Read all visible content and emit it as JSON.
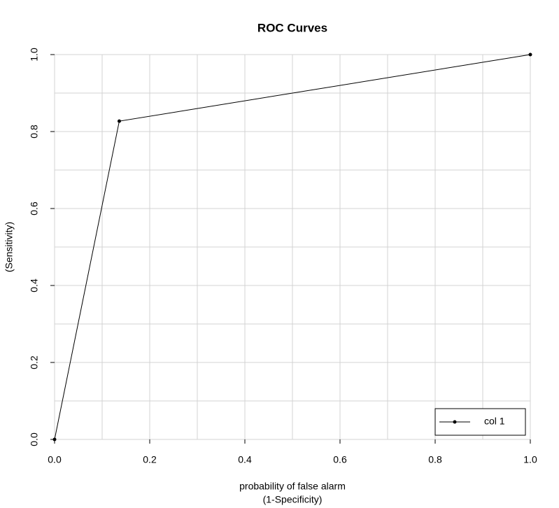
{
  "chart_data": {
    "type": "line",
    "title": "ROC Curves",
    "xlabel": [
      "probability of false alarm",
      "(1-Specificity)"
    ],
    "ylabel": "(Sensitivity)",
    "x": [
      0,
      0.136,
      1
    ],
    "series": [
      {
        "name": "col 1",
        "color": "#000000",
        "values": [
          0,
          0.827,
          1
        ]
      }
    ],
    "xlim": [
      0,
      1
    ],
    "ylim": [
      0,
      1
    ],
    "xticks": [
      {
        "value": 0,
        "label": "0.0"
      },
      {
        "value": 0.2,
        "label": "0.2"
      },
      {
        "value": 0.4,
        "label": "0.4"
      },
      {
        "value": 0.6,
        "label": "0.6"
      },
      {
        "value": 0.8,
        "label": "0.8"
      },
      {
        "value": 1,
        "label": "1.0"
      }
    ],
    "yticks": [
      {
        "value": 0,
        "label": "0.0"
      },
      {
        "value": 0.2,
        "label": "0.2"
      },
      {
        "value": 0.4,
        "label": "0.4"
      },
      {
        "value": 0.6,
        "label": "0.6"
      },
      {
        "value": 0.8,
        "label": "0.8"
      },
      {
        "value": 1,
        "label": "1.0"
      }
    ],
    "grid_xticks": [
      0,
      0.1,
      0.2,
      0.3,
      0.4,
      0.5,
      0.6,
      0.7,
      0.8,
      0.9,
      1
    ],
    "grid_yticks": [
      0,
      0.1,
      0.2,
      0.3,
      0.4,
      0.5,
      0.6,
      0.7,
      0.8,
      0.9,
      1
    ],
    "grid": true,
    "legend": "bottom-right"
  }
}
